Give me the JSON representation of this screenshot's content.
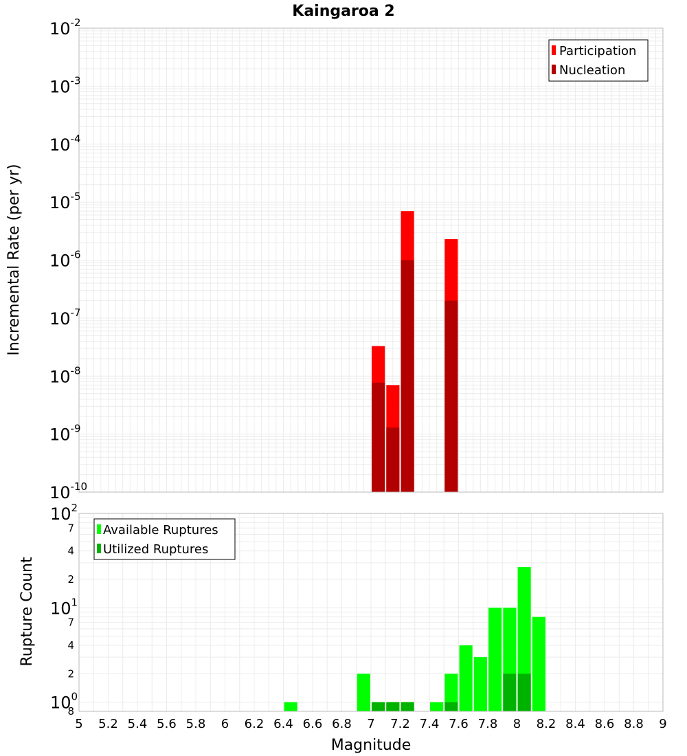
{
  "colors": {
    "participation": "#ff0000",
    "nucleation": "#b20000",
    "available": "#00ff00",
    "utilized": "#00b200",
    "grid": "#ececec",
    "frame": "#b8b8b8"
  },
  "chart_data": [
    {
      "type": "bar",
      "title": "Kaingaroa 2",
      "xlabel": "",
      "ylabel": "Incremental Rate (per yr)",
      "yscale": "log",
      "xlim": [
        5,
        9
      ],
      "ylim": [
        1e-10,
        0.01
      ],
      "y_ticks": [
        {
          "base": "10",
          "exp": "-10"
        },
        {
          "base": "10",
          "exp": "-9"
        },
        {
          "base": "10",
          "exp": "-8"
        },
        {
          "base": "10",
          "exp": "-7"
        },
        {
          "base": "10",
          "exp": "-6"
        },
        {
          "base": "10",
          "exp": "-5"
        },
        {
          "base": "10",
          "exp": "-4"
        },
        {
          "base": "10",
          "exp": "-3"
        },
        {
          "base": "10",
          "exp": "-2"
        }
      ],
      "legend": {
        "position": "top-right",
        "entries": [
          "Participation",
          "Nucleation"
        ]
      },
      "series": [
        {
          "name": "Participation",
          "x": [
            7.05,
            7.15,
            7.25,
            7.55
          ],
          "values": [
            3.3e-08,
            7e-09,
            7e-06,
            2.3e-06
          ]
        },
        {
          "name": "Nucleation",
          "x": [
            7.05,
            7.15,
            7.25,
            7.55
          ],
          "values": [
            7.7e-09,
            1.3e-09,
            1e-06,
            2e-07
          ]
        }
      ]
    },
    {
      "type": "bar",
      "title": "",
      "xlabel": "Magnitude",
      "ylabel": "Rupture Count",
      "yscale": "log",
      "xlim": [
        5,
        9
      ],
      "ylim": [
        0.8,
        100
      ],
      "x_ticks": [
        "5",
        "5.2",
        "5.4",
        "5.6",
        "5.8",
        "6",
        "6.2",
        "6.4",
        "6.6",
        "6.8",
        "7",
        "7.2",
        "7.4",
        "7.6",
        "7.8",
        "8",
        "8.2",
        "8.4",
        "8.6",
        "8.8",
        "9"
      ],
      "y_major_ticks": [
        {
          "base": "10",
          "exp": "0",
          "value": 1
        },
        {
          "base": "10",
          "exp": "1",
          "value": 10
        },
        {
          "base": "10",
          "exp": "2",
          "value": 100
        }
      ],
      "y_minor_ticks": [
        {
          "label": "8",
          "value": 0.8
        },
        {
          "label": "2",
          "value": 2
        },
        {
          "label": "4",
          "value": 4
        },
        {
          "label": "7",
          "value": 7
        },
        {
          "label": "2",
          "value": 20
        },
        {
          "label": "4",
          "value": 40
        },
        {
          "label": "7",
          "value": 70
        }
      ],
      "legend": {
        "position": "top-left",
        "entries": [
          "Available Ruptures",
          "Utilized Ruptures"
        ]
      },
      "series": [
        {
          "name": "Available Ruptures",
          "x": [
            6.45,
            6.95,
            7.05,
            7.15,
            7.25,
            7.45,
            7.55,
            7.65,
            7.75,
            7.85,
            7.95,
            8.05,
            8.15
          ],
          "values": [
            1,
            2,
            1,
            1,
            1,
            1,
            2,
            4,
            3,
            10,
            10,
            27,
            8
          ]
        },
        {
          "name": "Utilized Ruptures",
          "x": [
            7.05,
            7.15,
            7.25,
            7.55,
            7.95,
            8.05
          ],
          "values": [
            1,
            1,
            1,
            1,
            2,
            2
          ]
        }
      ]
    }
  ]
}
